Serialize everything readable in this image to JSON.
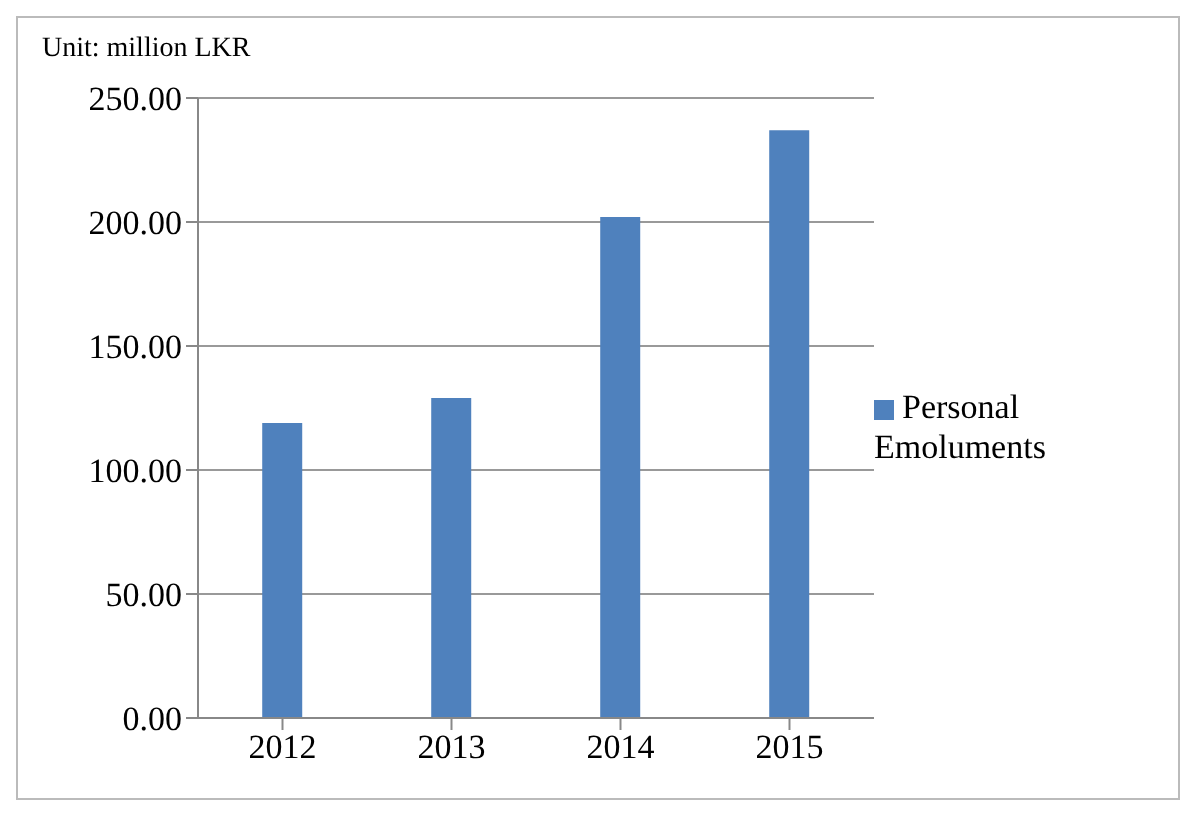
{
  "chart_data": {
    "type": "bar",
    "title": "Unit: million LKR",
    "categories": [
      "2012",
      "2013",
      "2014",
      "2015"
    ],
    "series": [
      {
        "name": "Personal Emoluments",
        "color": "#4f81bd",
        "values": [
          119,
          129,
          202,
          237
        ]
      }
    ],
    "ylim": [
      0,
      250
    ],
    "yticks": [
      {
        "value": 0,
        "label": "0.00"
      },
      {
        "value": 50,
        "label": "50.00"
      },
      {
        "value": 100,
        "label": "100.00"
      },
      {
        "value": 150,
        "label": "150.00"
      },
      {
        "value": 200,
        "label": "200.00"
      },
      {
        "value": 250,
        "label": "250.00"
      }
    ],
    "grid": "y",
    "legend": "right"
  }
}
